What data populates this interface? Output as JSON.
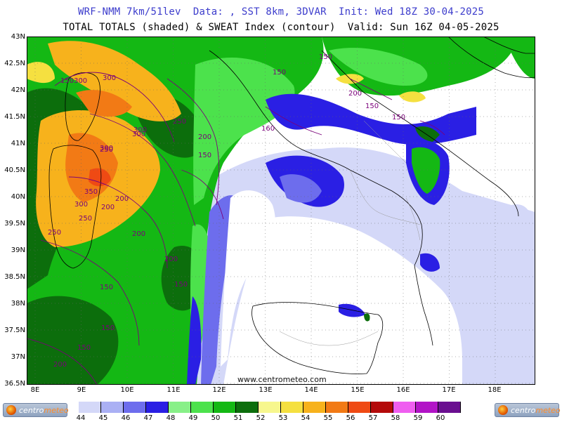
{
  "header": {
    "line1": "WRF-NMM 7km/51lev  Data: , SST 8km, 3DVAR  Init: Wed 18Z 30-04-2025",
    "line2": "TOTAL TOTALS (shaded) & SWEAT Index (contour)  Valid: Sun 16Z 04-05-2025"
  },
  "map": {
    "watermark": "www.centrometeo.com",
    "lat_labels": [
      "43N",
      "42.5N",
      "42N",
      "41.5N",
      "41N",
      "40.5N",
      "40N",
      "39.5N",
      "39N",
      "38.5N",
      "38N",
      "37.5N",
      "37N",
      "36.5N"
    ],
    "lon_labels": [
      "8E",
      "9E",
      "10E",
      "11E",
      "12E",
      "13E",
      "14E",
      "15E",
      "16E",
      "17E",
      "18E"
    ],
    "contour_labels": [
      "300",
      "150300",
      "300",
      "300",
      "300",
      "250",
      "250",
      "200",
      "150",
      "200",
      "350",
      "300",
      "250",
      "200",
      "250",
      "200",
      "200",
      "150",
      "150",
      "150",
      "150",
      "200",
      "150",
      "150",
      "150",
      "150",
      "200",
      "160"
    ]
  },
  "legend": {
    "ticks": [
      "44",
      "45",
      "46",
      "47",
      "48",
      "49",
      "50",
      "51",
      "52",
      "53",
      "54",
      "55",
      "56",
      "57",
      "58",
      "59",
      "60"
    ],
    "colors": [
      "#d4d8f8",
      "#aab0f4",
      "#6d6ded",
      "#2a1fe4",
      "#88f088",
      "#4ce24c",
      "#14b814",
      "#0c6e0c",
      "#f7f78e",
      "#f5e040",
      "#f7b21c",
      "#f27a15",
      "#ef4a14",
      "#b40a0a",
      "#ef5ef0",
      "#b214c7",
      "#6a0f90"
    ]
  },
  "logos": {
    "left_name": "centrometeo",
    "right_name": "centrometeo"
  }
}
